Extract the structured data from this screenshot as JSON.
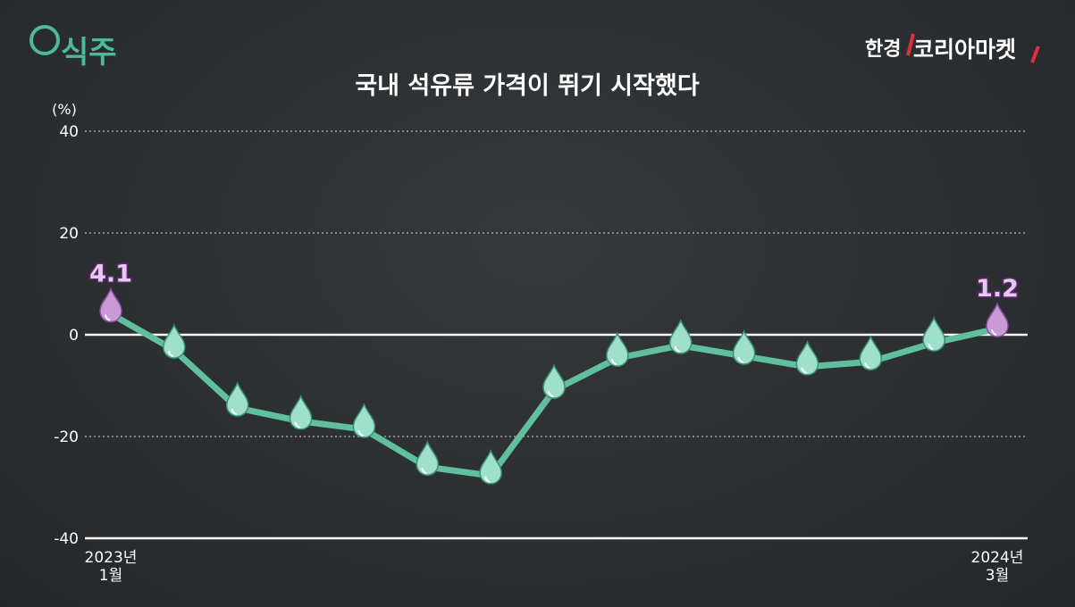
{
  "chart_data": {
    "type": "line",
    "title": "국내 석유류 가격이 뛰기 시작했다",
    "brand_left": "식주",
    "brand_right": [
      "한경",
      "코리아마켓"
    ],
    "y_unit": "(%)",
    "categories": [
      "2023년\n1월",
      null,
      null,
      null,
      null,
      null,
      null,
      null,
      null,
      null,
      null,
      null,
      null,
      null,
      "2024년\n3월"
    ],
    "series": [
      {
        "name": "석유류 가격",
        "color": "#5fbf9f",
        "marker_color": "#9fe0cb",
        "highlight_color": "#c99ad6",
        "values": [
          4.1,
          -3.0,
          -14.4,
          -17.0,
          -18.6,
          -26.0,
          -27.7,
          -10.9,
          -4.6,
          -2.1,
          -4.2,
          -6.3,
          -5.3,
          -1.6,
          1.2
        ],
        "value_labels": [
          "4.1",
          null,
          null,
          null,
          null,
          null,
          null,
          null,
          null,
          null,
          null,
          null,
          null,
          null,
          "1.2"
        ]
      }
    ],
    "ylim": [
      -40,
      40
    ],
    "yticks": [
      -40,
      -20,
      0,
      20,
      40
    ],
    "grid": true
  }
}
